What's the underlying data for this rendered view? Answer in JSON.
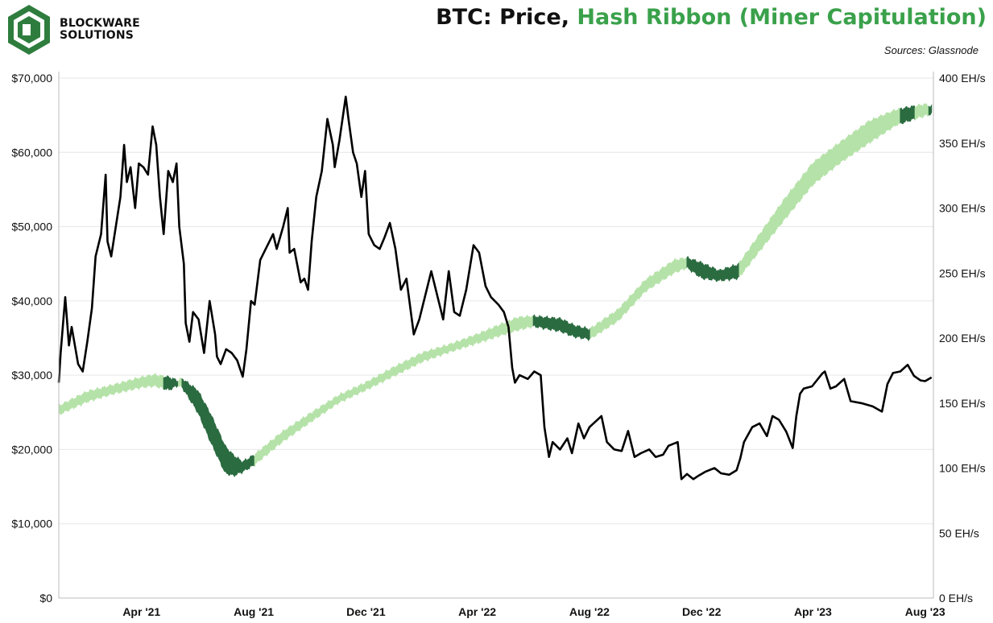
{
  "brand": {
    "line1": "BLOCKWARE",
    "line2": "SOLUTIONS",
    "logo_icon": "blockware-logo-icon",
    "logo_color": "#2e7d3e"
  },
  "header": {
    "title_part1": "BTC: Price, ",
    "title_part2": "Hash Ribbon (Miner Capitulation)",
    "source": "Sources: Glassnode"
  },
  "colors": {
    "price": "#000000",
    "ribbon_normal": "#b5e2a8",
    "ribbon_capitulation": "#2b6b40",
    "title_accent": "#3aa14b"
  },
  "chart_data": {
    "type": "line",
    "x_ticks": [
      "Apr '21",
      "Aug '21",
      "Dec '21",
      "Apr '22",
      "Aug '22",
      "Dec '22",
      "Apr '23",
      "Aug '23"
    ],
    "x_tick_dates": [
      "2021-04-01",
      "2021-08-01",
      "2021-12-01",
      "2022-04-01",
      "2022-08-01",
      "2022-12-01",
      "2023-04-01",
      "2023-08-01"
    ],
    "x_range": [
      "2021-01-01",
      "2023-08-10"
    ],
    "y_left": {
      "ticks": [
        "$0",
        "$10,000",
        "$20,000",
        "$30,000",
        "$40,000",
        "$50,000",
        "$60,000",
        "$70,000"
      ],
      "range": [
        0,
        70000
      ]
    },
    "y_right": {
      "ticks": [
        "0 EH/s",
        "50 EH/s",
        "100 EH/s",
        "150 EH/s",
        "200 EH/s",
        "250 EH/s",
        "300 EH/s",
        "350 EH/s",
        "400 EH/s"
      ],
      "range": [
        0,
        400
      ]
    },
    "grid": "horizontal",
    "series": [
      {
        "axis": "left",
        "points": [
          [
            "2021-01-01",
            29000
          ],
          [
            "2021-01-03",
            33000
          ],
          [
            "2021-01-08",
            40500
          ],
          [
            "2021-01-12",
            34000
          ],
          [
            "2021-01-15",
            36500
          ],
          [
            "2021-01-22",
            31500
          ],
          [
            "2021-01-27",
            30500
          ],
          [
            "2021-02-01",
            34500
          ],
          [
            "2021-02-06",
            39000
          ],
          [
            "2021-02-10",
            46000
          ],
          [
            "2021-02-16",
            49000
          ],
          [
            "2021-02-21",
            57000
          ],
          [
            "2021-02-23",
            48000
          ],
          [
            "2021-02-27",
            46000
          ],
          [
            "2021-03-04",
            50000
          ],
          [
            "2021-03-09",
            54000
          ],
          [
            "2021-03-13",
            61000
          ],
          [
            "2021-03-16",
            56000
          ],
          [
            "2021-03-20",
            58000
          ],
          [
            "2021-03-25",
            52500
          ],
          [
            "2021-03-29",
            58500
          ],
          [
            "2021-04-03",
            58000
          ],
          [
            "2021-04-08",
            57000
          ],
          [
            "2021-04-13",
            63500
          ],
          [
            "2021-04-17",
            61000
          ],
          [
            "2021-04-21",
            54000
          ],
          [
            "2021-04-25",
            49000
          ],
          [
            "2021-04-30",
            57500
          ],
          [
            "2021-05-05",
            56000
          ],
          [
            "2021-05-09",
            58500
          ],
          [
            "2021-05-12",
            50000
          ],
          [
            "2021-05-17",
            45000
          ],
          [
            "2021-05-19",
            37000
          ],
          [
            "2021-05-23",
            34500
          ],
          [
            "2021-05-27",
            38500
          ],
          [
            "2021-06-02",
            37500
          ],
          [
            "2021-06-08",
            33000
          ],
          [
            "2021-06-14",
            40000
          ],
          [
            "2021-06-20",
            35500
          ],
          [
            "2021-06-22",
            32500
          ],
          [
            "2021-06-26",
            31500
          ],
          [
            "2021-07-02",
            33500
          ],
          [
            "2021-07-08",
            33000
          ],
          [
            "2021-07-14",
            32000
          ],
          [
            "2021-07-20",
            29800
          ],
          [
            "2021-07-24",
            33500
          ],
          [
            "2021-07-29",
            40000
          ],
          [
            "2021-08-02",
            39500
          ],
          [
            "2021-08-08",
            45500
          ],
          [
            "2021-08-14",
            47000
          ],
          [
            "2021-08-22",
            49000
          ],
          [
            "2021-08-26",
            47000
          ],
          [
            "2021-09-02",
            50000
          ],
          [
            "2021-09-07",
            52500
          ],
          [
            "2021-09-09",
            46500
          ],
          [
            "2021-09-14",
            47000
          ],
          [
            "2021-09-21",
            42500
          ],
          [
            "2021-09-25",
            43000
          ],
          [
            "2021-09-29",
            41500
          ],
          [
            "2021-10-03",
            48000
          ],
          [
            "2021-10-08",
            54000
          ],
          [
            "2021-10-14",
            57500
          ],
          [
            "2021-10-20",
            64500
          ],
          [
            "2021-10-26",
            61000
          ],
          [
            "2021-10-28",
            58000
          ],
          [
            "2021-11-02",
            61500
          ],
          [
            "2021-11-09",
            67500
          ],
          [
            "2021-11-12",
            64500
          ],
          [
            "2021-11-17",
            60000
          ],
          [
            "2021-11-21",
            58500
          ],
          [
            "2021-11-26",
            54000
          ],
          [
            "2021-11-30",
            57500
          ],
          [
            "2021-12-04",
            49000
          ],
          [
            "2021-12-10",
            47500
          ],
          [
            "2021-12-16",
            47000
          ],
          [
            "2021-12-21",
            48500
          ],
          [
            "2021-12-27",
            50500
          ],
          [
            "2022-01-02",
            47000
          ],
          [
            "2022-01-08",
            41500
          ],
          [
            "2022-01-14",
            43000
          ],
          [
            "2022-01-22",
            35500
          ],
          [
            "2022-01-28",
            37500
          ],
          [
            "2022-02-05",
            41500
          ],
          [
            "2022-02-10",
            44000
          ],
          [
            "2022-02-16",
            41000
          ],
          [
            "2022-02-23",
            37500
          ],
          [
            "2022-03-01",
            44000
          ],
          [
            "2022-03-07",
            38500
          ],
          [
            "2022-03-13",
            38000
          ],
          [
            "2022-03-20",
            41500
          ],
          [
            "2022-03-28",
            47500
          ],
          [
            "2022-04-03",
            46500
          ],
          [
            "2022-04-10",
            42000
          ],
          [
            "2022-04-16",
            40500
          ],
          [
            "2022-04-24",
            39500
          ],
          [
            "2022-04-30",
            38500
          ],
          [
            "2022-05-05",
            36500
          ],
          [
            "2022-05-09",
            31000
          ],
          [
            "2022-05-12",
            29000
          ],
          [
            "2022-05-17",
            30000
          ],
          [
            "2022-05-26",
            29500
          ],
          [
            "2022-06-02",
            30500
          ],
          [
            "2022-06-09",
            30000
          ],
          [
            "2022-06-13",
            23000
          ],
          [
            "2022-06-18",
            19000
          ],
          [
            "2022-06-22",
            21000
          ],
          [
            "2022-06-30",
            20000
          ],
          [
            "2022-07-08",
            21500
          ],
          [
            "2022-07-13",
            19500
          ],
          [
            "2022-07-20",
            23500
          ],
          [
            "2022-07-26",
            21500
          ],
          [
            "2022-08-01",
            23000
          ],
          [
            "2022-08-14",
            24500
          ],
          [
            "2022-08-20",
            21000
          ],
          [
            "2022-08-28",
            20000
          ],
          [
            "2022-09-05",
            19800
          ],
          [
            "2022-09-12",
            22500
          ],
          [
            "2022-09-19",
            19000
          ],
          [
            "2022-09-26",
            19500
          ],
          [
            "2022-10-05",
            20000
          ],
          [
            "2022-10-12",
            19000
          ],
          [
            "2022-10-20",
            19300
          ],
          [
            "2022-10-26",
            20500
          ],
          [
            "2022-11-05",
            21000
          ],
          [
            "2022-11-09",
            16000
          ],
          [
            "2022-11-15",
            16700
          ],
          [
            "2022-11-22",
            16000
          ],
          [
            "2022-11-28",
            16500
          ],
          [
            "2022-12-05",
            17000
          ],
          [
            "2022-12-15",
            17500
          ],
          [
            "2022-12-22",
            16800
          ],
          [
            "2022-12-31",
            16600
          ],
          [
            "2023-01-08",
            17200
          ],
          [
            "2023-01-12",
            18800
          ],
          [
            "2023-01-16",
            21000
          ],
          [
            "2023-01-25",
            23000
          ],
          [
            "2023-02-02",
            23500
          ],
          [
            "2023-02-10",
            21800
          ],
          [
            "2023-02-16",
            24500
          ],
          [
            "2023-02-23",
            24000
          ],
          [
            "2023-03-03",
            22400
          ],
          [
            "2023-03-10",
            20200
          ],
          [
            "2023-03-14",
            24500
          ],
          [
            "2023-03-18",
            27500
          ],
          [
            "2023-03-22",
            28200
          ],
          [
            "2023-03-31",
            28500
          ],
          [
            "2023-04-11",
            30200
          ],
          [
            "2023-04-14",
            30500
          ],
          [
            "2023-04-20",
            28200
          ],
          [
            "2023-04-26",
            28500
          ],
          [
            "2023-05-05",
            29500
          ],
          [
            "2023-05-12",
            26500
          ],
          [
            "2023-05-25",
            26200
          ],
          [
            "2023-06-05",
            25800
          ],
          [
            "2023-06-15",
            25100
          ],
          [
            "2023-06-21",
            28800
          ],
          [
            "2023-06-27",
            30300
          ],
          [
            "2023-07-05",
            30500
          ],
          [
            "2023-07-13",
            31400
          ],
          [
            "2023-07-20",
            29900
          ],
          [
            "2023-07-27",
            29300
          ],
          [
            "2023-08-01",
            29200
          ],
          [
            "2023-08-08",
            29700
          ]
        ]
      },
      {
        "axis": "right",
        "ribbon_points": [
          [
            "2021-01-01",
            143,
            146
          ],
          [
            "2021-02-01",
            153,
            157
          ],
          [
            "2021-03-01",
            159,
            162
          ],
          [
            "2021-04-01",
            164,
            168
          ],
          [
            "2021-04-15",
            165,
            170
          ],
          [
            "2021-05-01",
            162,
            168
          ],
          [
            "2021-05-15",
            167,
            164
          ],
          [
            "2021-06-01",
            158,
            145
          ],
          [
            "2021-06-15",
            140,
            122
          ],
          [
            "2021-07-01",
            115,
            98
          ],
          [
            "2021-07-10",
            108,
            96
          ],
          [
            "2021-07-20",
            103,
            99
          ],
          [
            "2021-08-01",
            108,
            104
          ],
          [
            "2021-09-01",
            126,
            122
          ],
          [
            "2021-10-01",
            140,
            137
          ],
          [
            "2021-11-01",
            154,
            152
          ],
          [
            "2021-12-01",
            164,
            162
          ],
          [
            "2022-01-01",
            176,
            173
          ],
          [
            "2022-02-01",
            187,
            184
          ],
          [
            "2022-03-01",
            193,
            191
          ],
          [
            "2022-04-01",
            201,
            198
          ],
          [
            "2022-05-01",
            210,
            205
          ],
          [
            "2022-05-15",
            214,
            208
          ],
          [
            "2022-06-01",
            215,
            211
          ],
          [
            "2022-07-01",
            213,
            207
          ],
          [
            "2022-07-15",
            208,
            203
          ],
          [
            "2022-08-01",
            205,
            201
          ],
          [
            "2022-09-01",
            220,
            215
          ],
          [
            "2022-10-01",
            243,
            238
          ],
          [
            "2022-11-01",
            258,
            252
          ],
          [
            "2022-11-15",
            260,
            256
          ],
          [
            "2022-12-01",
            256,
            248
          ],
          [
            "2022-12-20",
            250,
            246
          ],
          [
            "2023-01-10",
            255,
            248
          ],
          [
            "2023-02-01",
            277,
            268
          ],
          [
            "2023-03-01",
            305,
            293
          ],
          [
            "2023-04-01",
            333,
            320
          ],
          [
            "2023-05-01",
            349,
            337
          ],
          [
            "2023-06-01",
            365,
            352
          ],
          [
            "2023-07-01",
            374,
            366
          ],
          [
            "2023-08-01",
            378,
            373
          ],
          [
            "2023-08-08",
            376,
            374
          ]
        ],
        "capitulation_periods": [
          [
            "2021-04-25",
            "2021-05-10"
          ],
          [
            "2021-05-15",
            "2021-08-01"
          ],
          [
            "2022-06-01",
            "2022-08-01"
          ],
          [
            "2022-11-15",
            "2023-01-10"
          ],
          [
            "2023-07-05",
            "2023-07-20"
          ],
          [
            "2023-08-05",
            "2023-08-08"
          ]
        ]
      }
    ]
  }
}
